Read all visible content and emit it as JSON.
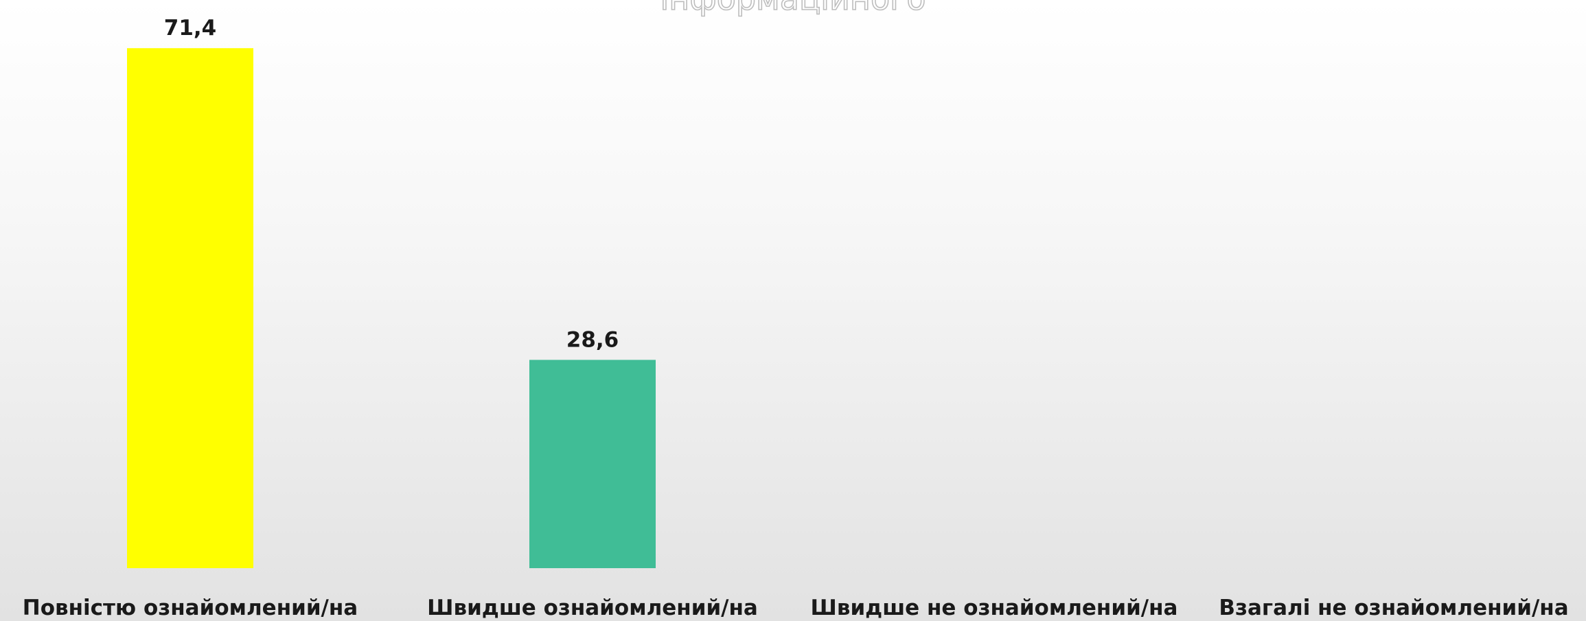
{
  "chart_data": {
    "type": "bar",
    "title": "інформаційного",
    "categories": [
      "Повністю ознайомлений/на",
      "Швидше ознайомлений/на",
      "Швидше не ознайомлений/на",
      "Взагалі не ознайомлений/на"
    ],
    "values": [
      71.4,
      28.6,
      0,
      0
    ],
    "value_labels": [
      "71,4",
      "28,6",
      "",
      ""
    ],
    "colors": [
      "#ffff00",
      "#40bd96",
      "#40bd96",
      "#40bd96"
    ],
    "ylim": [
      0,
      75
    ],
    "grid": false,
    "legend": "none"
  }
}
